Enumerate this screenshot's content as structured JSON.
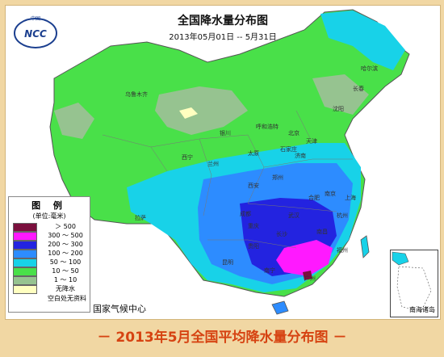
{
  "map": {
    "title": "全国降水量分布图",
    "date_range": "2013年05月01日 -- 5月31日",
    "logo_text": "中国",
    "logo_initials": "NCC",
    "agency": "国家气候中心",
    "colors": {
      "ocean": "#ffffff",
      "border": "#555555",
      "gray": "#9fb89a"
    }
  },
  "legend": {
    "title": "图 例",
    "unit": "(单位:毫米)",
    "items": [
      {
        "label": "＞ 500",
        "color": "#7a0f3d"
      },
      {
        "label": "300 ～ 500",
        "color": "#ff19ff"
      },
      {
        "label": "200 ～ 300",
        "color": "#2323e0"
      },
      {
        "label": "100 ～ 200",
        "color": "#2d8cff"
      },
      {
        "label": "50 ～ 100",
        "color": "#18d2e8"
      },
      {
        "label": "10 ～ 50",
        "color": "#49e049"
      },
      {
        "label": "1 ～ 10",
        "color": "#96c390"
      },
      {
        "label": "无降水",
        "color": "#ffffc0"
      }
    ],
    "no_data": "空白处无资料"
  },
  "cities": [
    "乌鲁木齐",
    "拉萨",
    "西宁",
    "兰州",
    "银川",
    "呼和浩特",
    "北京",
    "天津",
    "石家庄",
    "太原",
    "济南",
    "郑州",
    "西安",
    "成都",
    "重庆",
    "武汉",
    "长沙",
    "南昌",
    "杭州",
    "南京",
    "合肥",
    "昆明",
    "贵阳",
    "南宁",
    "广州",
    "福州",
    "上海",
    "沈阳",
    "长春",
    "哈尔滨"
  ],
  "inset_label": "南海诸岛",
  "caption": "－ 2013年5月全国平均降水量分布图 －"
}
